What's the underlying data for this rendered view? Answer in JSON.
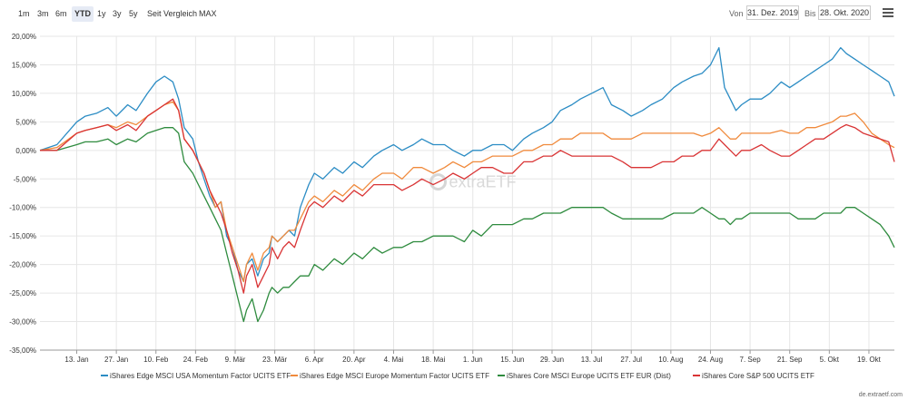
{
  "toolbar": {
    "ranges": [
      {
        "label": "1m",
        "active": false
      },
      {
        "label": "3m",
        "active": false
      },
      {
        "label": "6m",
        "active": false
      },
      {
        "label": "YTD",
        "active": true
      },
      {
        "label": "1y",
        "active": false
      },
      {
        "label": "3y",
        "active": false
      },
      {
        "label": "5y",
        "active": false
      },
      {
        "label": "Seit Vergleich",
        "active": false
      },
      {
        "label": "MAX",
        "active": false
      }
    ],
    "from_label": "Von",
    "from_value": "31. Dez. 2019",
    "to_label": "Bis",
    "to_value": "28. Okt. 2020",
    "menu_icon": "hamburger-menu-icon"
  },
  "watermark": "extraETF",
  "credit": "de.extraetf.com",
  "chart_data": {
    "type": "line",
    "ylim": [
      -35,
      20
    ],
    "ylabel": "",
    "xlabel": "",
    "grid": true,
    "legend_position": "bottom",
    "y_ticks": [
      "20,00%",
      "15,00%",
      "10,00%",
      "5,00%",
      "0,00%",
      "-5,00%",
      "-10,00%",
      "-15,00%",
      "-20,00%",
      "-25,00%",
      "-30,00%",
      "-35,00%"
    ],
    "y_tick_values": [
      20,
      15,
      10,
      5,
      0,
      -5,
      -10,
      -15,
      -20,
      -25,
      -30,
      -35
    ],
    "x_ticks": [
      "13. Jan",
      "27. Jan",
      "10. Feb",
      "24. Feb",
      "9. Mär",
      "23. Mär",
      "6. Apr",
      "20. Apr",
      "4. Mai",
      "18. Mai",
      "1. Jun",
      "15. Jun",
      "29. Jun",
      "13. Jul",
      "27. Jul",
      "10. Aug",
      "24. Aug",
      "7. Sep",
      "21. Sep",
      "5. Okt",
      "19. Okt"
    ],
    "x_tick_days": [
      13,
      27,
      41,
      55,
      69,
      83,
      97,
      111,
      125,
      139,
      153,
      167,
      181,
      195,
      209,
      223,
      237,
      251,
      265,
      279,
      293
    ],
    "x_range_days": [
      0,
      302
    ],
    "series": [
      {
        "name": "iShares Edge MSCI USA Momentum Factor UCITS ETF",
        "color": "#2b8cc4",
        "x": [
          0,
          6,
          13,
          16,
          20,
          24,
          27,
          31,
          34,
          38,
          41,
          44,
          47,
          49,
          51,
          54,
          56,
          58,
          60,
          62,
          64,
          66,
          68,
          70,
          72,
          73,
          75,
          77,
          79,
          81,
          82,
          84,
          86,
          88,
          90,
          92,
          95,
          97,
          100,
          104,
          107,
          111,
          114,
          118,
          121,
          125,
          128,
          132,
          135,
          139,
          143,
          146,
          150,
          153,
          156,
          160,
          164,
          167,
          171,
          174,
          178,
          181,
          184,
          188,
          191,
          195,
          199,
          202,
          206,
          209,
          213,
          216,
          220,
          224,
          227,
          231,
          234,
          237,
          240,
          242,
          244,
          246,
          248,
          251,
          255,
          258,
          262,
          265,
          268,
          271,
          274,
          277,
          280,
          283,
          285,
          288,
          291,
          294,
          297,
          300,
          302
        ],
        "y": [
          0,
          1,
          5,
          6,
          6.5,
          7.5,
          6,
          8,
          7,
          10,
          12,
          13,
          12,
          9,
          4,
          2,
          -2,
          -5,
          -8,
          -10,
          -9,
          -15,
          -17,
          -21,
          -23,
          -20,
          -19,
          -22,
          -19,
          -18,
          -15,
          -16,
          -15,
          -14,
          -15,
          -10,
          -6,
          -4,
          -5,
          -3,
          -4,
          -2,
          -3,
          -1,
          0,
          1,
          0,
          1,
          2,
          1,
          1,
          0,
          -1,
          0,
          0,
          1,
          1,
          0,
          2,
          3,
          4,
          5,
          7,
          8,
          9,
          10,
          11,
          8,
          7,
          6,
          7,
          8,
          9,
          11,
          12,
          13,
          13.5,
          15,
          18,
          11,
          9,
          7,
          8,
          9,
          9,
          10,
          12,
          11,
          12,
          13,
          14,
          15,
          16,
          18,
          17,
          16,
          15,
          14,
          13,
          12,
          9.5
        ]
      },
      {
        "name": "iShares Edge MSCI Europe Momentum Factor UCITS ETF",
        "color": "#f08a3c",
        "x": [
          0,
          6,
          13,
          16,
          20,
          24,
          27,
          31,
          34,
          38,
          41,
          44,
          47,
          49,
          51,
          54,
          56,
          58,
          60,
          62,
          64,
          66,
          68,
          70,
          72,
          73,
          75,
          77,
          79,
          81,
          82,
          84,
          86,
          88,
          90,
          92,
          95,
          97,
          100,
          104,
          107,
          111,
          114,
          118,
          121,
          125,
          128,
          132,
          135,
          139,
          143,
          146,
          150,
          153,
          156,
          160,
          164,
          167,
          171,
          174,
          178,
          181,
          184,
          188,
          191,
          195,
          199,
          202,
          206,
          209,
          213,
          216,
          220,
          224,
          227,
          231,
          234,
          237,
          240,
          242,
          244,
          246,
          248,
          251,
          255,
          258,
          262,
          265,
          268,
          271,
          274,
          277,
          280,
          283,
          285,
          288,
          291,
          294,
          297,
          300,
          302
        ],
        "y": [
          0,
          0.5,
          3,
          3.5,
          4,
          4.5,
          4,
          5,
          4.5,
          6,
          7,
          8,
          8.5,
          7,
          2,
          0,
          -2,
          -4,
          -7,
          -10,
          -9,
          -14,
          -17,
          -20,
          -23,
          -20,
          -18,
          -21,
          -18,
          -17,
          -15,
          -16,
          -15,
          -14,
          -14,
          -12,
          -9,
          -8,
          -9,
          -7,
          -8,
          -6,
          -7,
          -5,
          -4,
          -4,
          -5,
          -3,
          -3,
          -4,
          -3,
          -2,
          -3,
          -2,
          -2,
          -1,
          -1,
          -1,
          0,
          0,
          1,
          1,
          2,
          2,
          3,
          3,
          3,
          2,
          2,
          2,
          3,
          3,
          3,
          3,
          3,
          3,
          2.5,
          3,
          4,
          3,
          2,
          2,
          3,
          3,
          3,
          3,
          3.5,
          3,
          3,
          4,
          4,
          4.5,
          5,
          6,
          6,
          6.5,
          5,
          3,
          2,
          1,
          0.5
        ]
      },
      {
        "name": "iShares Core MSCI Europe UCITS ETF EUR (Dist)",
        "color": "#2e8b3e",
        "x": [
          0,
          6,
          13,
          16,
          20,
          24,
          27,
          31,
          34,
          38,
          41,
          44,
          47,
          49,
          51,
          54,
          56,
          58,
          60,
          62,
          64,
          66,
          68,
          70,
          72,
          73,
          75,
          77,
          79,
          81,
          82,
          84,
          86,
          88,
          90,
          92,
          95,
          97,
          100,
          104,
          107,
          111,
          114,
          118,
          121,
          125,
          128,
          132,
          135,
          139,
          143,
          146,
          150,
          153,
          156,
          160,
          164,
          167,
          171,
          174,
          178,
          181,
          184,
          188,
          191,
          195,
          199,
          202,
          206,
          209,
          213,
          216,
          220,
          224,
          227,
          231,
          234,
          237,
          240,
          242,
          244,
          246,
          248,
          251,
          255,
          258,
          262,
          265,
          268,
          271,
          274,
          277,
          280,
          283,
          285,
          288,
          291,
          294,
          297,
          300,
          302
        ],
        "y": [
          0,
          0,
          1,
          1.5,
          1.5,
          2,
          1,
          2,
          1.5,
          3,
          3.5,
          4,
          4,
          3,
          -2,
          -4,
          -6,
          -8,
          -10,
          -12,
          -14,
          -18,
          -22,
          -26,
          -30,
          -28,
          -26,
          -30,
          -28,
          -25,
          -24,
          -25,
          -24,
          -24,
          -23,
          -22,
          -22,
          -20,
          -21,
          -19,
          -20,
          -18,
          -19,
          -17,
          -18,
          -17,
          -17,
          -16,
          -16,
          -15,
          -15,
          -15,
          -16,
          -14,
          -15,
          -13,
          -13,
          -13,
          -12,
          -12,
          -11,
          -11,
          -11,
          -10,
          -10,
          -10,
          -10,
          -11,
          -12,
          -12,
          -12,
          -12,
          -12,
          -11,
          -11,
          -11,
          -10,
          -11,
          -12,
          -12,
          -13,
          -12,
          -12,
          -11,
          -11,
          -11,
          -11,
          -11,
          -12,
          -12,
          -12,
          -11,
          -11,
          -11,
          -10,
          -10,
          -11,
          -12,
          -13,
          -15,
          -17
        ]
      },
      {
        "name": "iShares Core S&P 500 UCITS ETF",
        "color": "#d93435",
        "x": [
          0,
          6,
          13,
          16,
          20,
          24,
          27,
          31,
          34,
          38,
          41,
          44,
          47,
          49,
          51,
          54,
          56,
          58,
          60,
          62,
          64,
          66,
          68,
          70,
          72,
          73,
          75,
          77,
          79,
          81,
          82,
          84,
          86,
          88,
          90,
          92,
          95,
          97,
          100,
          104,
          107,
          111,
          114,
          118,
          121,
          125,
          128,
          132,
          135,
          139,
          143,
          146,
          150,
          153,
          156,
          160,
          164,
          167,
          171,
          174,
          178,
          181,
          184,
          188,
          191,
          195,
          199,
          202,
          206,
          209,
          213,
          216,
          220,
          224,
          227,
          231,
          234,
          237,
          240,
          242,
          244,
          246,
          248,
          251,
          255,
          258,
          262,
          265,
          268,
          271,
          274,
          277,
          280,
          283,
          285,
          288,
          291,
          294,
          297,
          300,
          302
        ],
        "y": [
          0,
          0,
          3,
          3.5,
          4,
          4.5,
          3.5,
          4.5,
          3.5,
          6,
          7,
          8,
          9,
          7,
          2,
          0,
          -2,
          -4,
          -7,
          -9,
          -11,
          -14,
          -18,
          -21,
          -25,
          -22,
          -20,
          -24,
          -22,
          -20,
          -17,
          -19,
          -17,
          -16,
          -17,
          -14,
          -10,
          -9,
          -10,
          -8,
          -9,
          -7,
          -8,
          -6,
          -6,
          -6,
          -7,
          -6,
          -5,
          -6,
          -5,
          -4,
          -5,
          -4,
          -3,
          -3,
          -4,
          -4,
          -2,
          -2,
          -1,
          -1,
          0,
          -1,
          -1,
          -1,
          -1,
          -1,
          -2,
          -3,
          -3,
          -3,
          -2,
          -2,
          -1,
          -1,
          0,
          0,
          2,
          1,
          0,
          -1,
          0,
          0,
          1,
          0,
          -1,
          -1,
          0,
          1,
          2,
          2,
          3,
          4,
          4.5,
          4,
          3,
          2.5,
          2,
          1.5,
          -2
        ]
      }
    ]
  }
}
